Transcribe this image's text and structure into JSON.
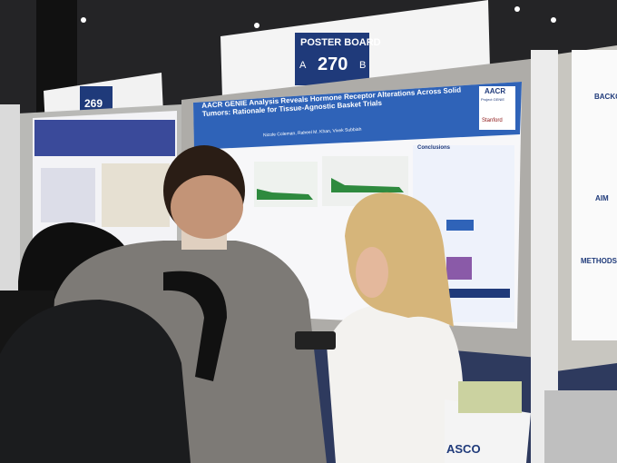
{
  "boards": [
    {
      "label": "POSTER BOARD",
      "letter_left": "A",
      "number": "270",
      "letter_right": "B"
    },
    {
      "number": "269"
    }
  ],
  "main_poster": {
    "title": "AACR GENIE Analysis Reveals Hormone Receptor Alterations Across Solid Tumors: Rationale for Tissue-Agnostic Basket Trials",
    "authors": "Nicole Coleman, Raheel M. Khan, Vivek Subbiah",
    "logos": [
      "AACR",
      "Project GENIE",
      "Stanford"
    ],
    "section": "Conclusions"
  },
  "right_poster": {
    "sections": [
      "BACKG",
      "AIM",
      "METHODS"
    ]
  },
  "bag": "ASCO"
}
